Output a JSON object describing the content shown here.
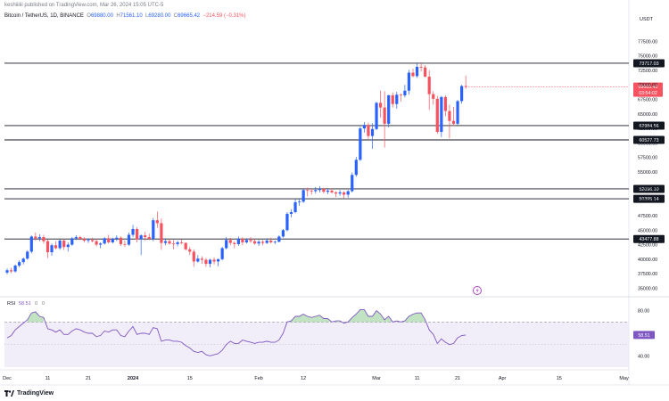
{
  "header": {
    "publisher": "keshiiiiii published on TradingView.com, Mar 26, 2024 15:05 UTC-5",
    "symbol": "Bitcoin / TetherUS, 1D, BINANCE",
    "o_label": "O",
    "o_value": "69880.00",
    "h_label": "H",
    "h_value": "71561.10",
    "l_label": "L",
    "l_value": "69280.00",
    "c_label": "C",
    "c_value": "69665.42",
    "change": "−214.59 (−0.31%)"
  },
  "colors": {
    "up": "#2962ff",
    "down": "#f7525f",
    "rsi": "#7e57c2",
    "rsi_fill_up": "#4caf50",
    "last_price_label": "#f7525f"
  },
  "chart_data": [
    {
      "type": "candlestick",
      "title": "Bitcoin / TetherUS, 1D, BINANCE",
      "currency": "USDT",
      "ylim": [
        34000,
        80000
      ],
      "price_ticks": [
        "77500.00",
        "75000.00",
        "72500.00",
        "70000.00",
        "67500.00",
        "65000.00",
        "62500.00",
        "60000.00",
        "57500.00",
        "55000.00",
        "52500.00",
        "50000.00",
        "47500.00",
        "45000.00",
        "42500.00",
        "40000.00",
        "37500.00",
        "35000.00"
      ],
      "levels": [
        {
          "value": 73717.03,
          "label": "73717.03"
        },
        {
          "value": 62984.56,
          "label": "62984.56"
        },
        {
          "value": 60527.73,
          "label": "60527.73"
        },
        {
          "value": 52096.1,
          "label": "52096.10"
        },
        {
          "value": 50395.14,
          "label": "50395.14"
        },
        {
          "value": 43477.88,
          "label": "43477.88"
        }
      ],
      "last_price": {
        "value": 69665.42,
        "label": "69665.42",
        "countdown": "03:54:02"
      },
      "x_ticks": [
        {
          "i": 0,
          "label": "Dec"
        },
        {
          "i": 10,
          "label": "11"
        },
        {
          "i": 20,
          "label": "21"
        },
        {
          "i": 31,
          "label": "2024",
          "bold": true
        },
        {
          "i": 45,
          "label": "15"
        },
        {
          "i": 62,
          "label": "Feb"
        },
        {
          "i": 73,
          "label": "12"
        },
        {
          "i": 91,
          "label": "Mar"
        },
        {
          "i": 101,
          "label": "11"
        },
        {
          "i": 111,
          "label": "21"
        },
        {
          "i": 122,
          "label": "Apr"
        },
        {
          "i": 136,
          "label": "15"
        },
        {
          "i": 152,
          "label": "May"
        }
      ],
      "candles": [
        [
          37700,
          38400,
          37400,
          38100
        ],
        [
          38100,
          38500,
          37600,
          37900
        ],
        [
          37900,
          39100,
          37700,
          38900
        ],
        [
          38900,
          39800,
          38600,
          39500
        ],
        [
          39500,
          40300,
          39100,
          40100
        ],
        [
          40100,
          41500,
          39900,
          41300
        ],
        [
          41300,
          44100,
          41000,
          43900
        ],
        [
          43900,
          44600,
          43200,
          43600
        ],
        [
          43600,
          44300,
          43100,
          43800
        ],
        [
          43800,
          44200,
          42700,
          43100
        ],
        [
          43100,
          43400,
          40200,
          41200
        ],
        [
          41200,
          42700,
          40600,
          42400
        ],
        [
          42400,
          43100,
          41700,
          41900
        ],
        [
          41900,
          43400,
          41600,
          43200
        ],
        [
          43200,
          43500,
          41600,
          42100
        ],
        [
          42100,
          42900,
          41300,
          42500
        ],
        [
          42500,
          43800,
          42300,
          43600
        ],
        [
          43600,
          44100,
          43300,
          43800
        ],
        [
          43800,
          44000,
          43300,
          43500
        ],
        [
          43500,
          43800,
          42900,
          43200
        ],
        [
          43200,
          43600,
          42800,
          43300
        ],
        [
          43300,
          43700,
          42900,
          43100
        ],
        [
          43100,
          43500,
          42200,
          42500
        ],
        [
          42500,
          42900,
          41900,
          42700
        ],
        [
          42700,
          43800,
          42500,
          43600
        ],
        [
          43600,
          44200,
          42700,
          42900
        ],
        [
          42900,
          43700,
          42700,
          43500
        ],
        [
          43500,
          44100,
          43100,
          43700
        ],
        [
          43700,
          43900,
          42300,
          42600
        ],
        [
          42600,
          43200,
          42100,
          42500
        ],
        [
          42500,
          44600,
          42300,
          44200
        ],
        [
          44200,
          45900,
          43800,
          45200
        ],
        [
          45200,
          45500,
          42900,
          43400
        ],
        [
          43400,
          44300,
          40700,
          44100
        ],
        [
          44100,
          44700,
          43200,
          43800
        ],
        [
          43800,
          44400,
          43300,
          43500
        ],
        [
          43500,
          47100,
          43100,
          46700
        ],
        [
          46700,
          48200,
          45400,
          46200
        ],
        [
          46200,
          47000,
          41600,
          42800
        ],
        [
          42800,
          43600,
          42400,
          43100
        ],
        [
          43100,
          43500,
          42500,
          42700
        ],
        [
          42700,
          43300,
          41700,
          42600
        ],
        [
          42600,
          43200,
          42200,
          42900
        ],
        [
          42900,
          43400,
          42600,
          42800
        ],
        [
          42800,
          42900,
          41500,
          41700
        ],
        [
          41700,
          42100,
          40700,
          41300
        ],
        [
          41300,
          41700,
          38700,
          39600
        ],
        [
          39600,
          40700,
          39400,
          40100
        ],
        [
          40100,
          40500,
          39200,
          39900
        ],
        [
          39900,
          40200,
          38700,
          39200
        ],
        [
          39200,
          40100,
          38600,
          39900
        ],
        [
          39900,
          40300,
          39100,
          39600
        ],
        [
          39600,
          40100,
          38800,
          40000
        ],
        [
          40000,
          42100,
          39800,
          41900
        ],
        [
          41900,
          43800,
          41700,
          43300
        ],
        [
          43300,
          43700,
          42400,
          42800
        ],
        [
          42800,
          43100,
          41900,
          42600
        ],
        [
          42600,
          43900,
          42300,
          43500
        ],
        [
          43500,
          43800,
          42400,
          42900
        ],
        [
          42900,
          43600,
          42700,
          43300
        ],
        [
          43300,
          43800,
          42800,
          43100
        ],
        [
          43100,
          43600,
          42500,
          42700
        ],
        [
          42700,
          43300,
          42300,
          43000
        ],
        [
          43000,
          43300,
          42400,
          42800
        ],
        [
          42800,
          43600,
          42600,
          43200
        ],
        [
          43200,
          43700,
          42700,
          42900
        ],
        [
          42900,
          43200,
          42600,
          43000
        ],
        [
          43000,
          44100,
          42900,
          43900
        ],
        [
          43900,
          45200,
          43700,
          45000
        ],
        [
          45000,
          48100,
          44800,
          47800
        ],
        [
          47800,
          48600,
          47200,
          48100
        ],
        [
          48100,
          50300,
          47900,
          49800
        ],
        [
          49800,
          50400,
          49200,
          49900
        ],
        [
          49900,
          52100,
          49700,
          51900
        ],
        [
          51900,
          52300,
          50800,
          51800
        ],
        [
          51800,
          52200,
          51100,
          51700
        ],
        [
          51700,
          52400,
          51300,
          51900
        ],
        [
          51900,
          52600,
          51500,
          52100
        ],
        [
          52100,
          52300,
          51300,
          51600
        ],
        [
          51600,
          52100,
          51200,
          51800
        ],
        [
          51800,
          52200,
          51300,
          51500
        ],
        [
          51500,
          51700,
          50700,
          51300
        ],
        [
          51300,
          51900,
          50900,
          51500
        ],
        [
          51500,
          51700,
          50500,
          51100
        ],
        [
          51100,
          51900,
          50600,
          51700
        ],
        [
          51700,
          54900,
          51500,
          54500
        ],
        [
          54500,
          57600,
          54200,
          57100
        ],
        [
          57100,
          62800,
          56900,
          62500
        ],
        [
          62500,
          63600,
          61800,
          63100
        ],
        [
          63100,
          63500,
          60700,
          61200
        ],
        [
          61200,
          63400,
          59000,
          62400
        ],
        [
          62400,
          67100,
          62200,
          66900
        ],
        [
          66900,
          69000,
          64400,
          66100
        ],
        [
          66100,
          68900,
          59200,
          63300
        ],
        [
          63300,
          68300,
          62700,
          68200
        ],
        [
          68200,
          68700,
          66100,
          66700
        ],
        [
          66700,
          68800,
          65900,
          68300
        ],
        [
          68300,
          68500,
          67100,
          68200
        ],
        [
          68200,
          70000,
          67800,
          69000
        ],
        [
          69000,
          72600,
          68300,
          72100
        ],
        [
          72100,
          72800,
          71300,
          71500
        ],
        [
          71500,
          73700,
          71200,
          73100
        ],
        [
          73100,
          73700,
          72300,
          73000
        ],
        [
          73000,
          73400,
          71300,
          71400
        ],
        [
          71400,
          72500,
          65700,
          68400
        ],
        [
          68400,
          68900,
          66600,
          67600
        ],
        [
          67600,
          68100,
          61600,
          61900
        ],
        [
          61900,
          68100,
          61000,
          67900
        ],
        [
          67900,
          68200,
          64600,
          65500
        ],
        [
          65500,
          66600,
          60800,
          63800
        ],
        [
          63800,
          66200,
          62900,
          63300
        ],
        [
          63300,
          67400,
          63100,
          67200
        ],
        [
          67200,
          70000,
          66800,
          69800
        ],
        [
          69800,
          71600,
          69300,
          69665
        ]
      ]
    },
    {
      "type": "line",
      "title": "RSI",
      "label": "RSI",
      "value_label": "58.51",
      "extra_labels": [
        "0",
        "0"
      ],
      "ylim": [
        30,
        90
      ],
      "upper_band": 70,
      "lower_band": 30,
      "ticks": [
        "80.00",
        "40.00"
      ],
      "last_value": 58.51,
      "values": [
        56,
        58,
        63,
        66,
        69,
        72,
        78,
        79,
        75,
        74,
        64,
        63,
        61,
        63,
        59,
        59,
        62,
        64,
        63,
        61,
        60,
        60,
        57,
        58,
        62,
        61,
        63,
        63,
        58,
        57,
        62,
        66,
        59,
        60,
        60,
        59,
        65,
        64,
        53,
        54,
        54,
        53,
        53,
        52,
        49,
        47,
        44,
        43,
        44,
        41,
        40,
        41,
        42,
        45,
        50,
        53,
        51,
        51,
        54,
        53,
        52,
        51,
        52,
        52,
        53,
        52,
        52,
        54,
        60,
        70,
        71,
        75,
        75,
        77,
        75,
        74,
        75,
        76,
        73,
        73,
        70,
        71,
        71,
        69,
        70,
        74,
        77,
        81,
        81,
        75,
        75,
        80,
        77,
        72,
        75,
        70,
        71,
        70,
        71,
        75,
        77,
        78,
        78,
        72,
        63,
        59,
        51,
        55,
        52,
        50,
        51,
        56,
        58,
        58.51
      ]
    }
  ],
  "footer": {
    "brand": "TradingView"
  }
}
